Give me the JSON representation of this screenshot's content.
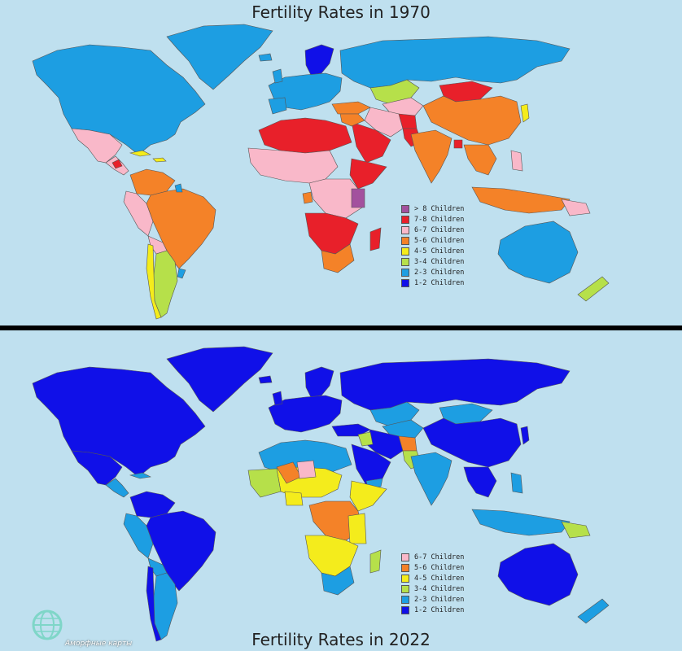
{
  "map_1970": {
    "title": "Fertility Rates in 1970",
    "legend": [
      {
        "label": "> 8 Children",
        "color": "#a3519e"
      },
      {
        "label": "7-8 Children",
        "color": "#e8202a"
      },
      {
        "label": "6-7 Children",
        "color": "#f9b8c9"
      },
      {
        "label": "5-6 Children",
        "color": "#f48228"
      },
      {
        "label": "4-5 Children",
        "color": "#f4ec1c"
      },
      {
        "label": "3-4 Children",
        "color": "#b6e04a"
      },
      {
        "label": "2-3 Children",
        "color": "#1d9ee2"
      },
      {
        "label": "1-2 Children",
        "color": "#1010e8"
      }
    ]
  },
  "map_2022": {
    "title": "Fertility Rates in 2022",
    "legend": [
      {
        "label": "6-7 Children",
        "color": "#f9b8c9"
      },
      {
        "label": "5-6 Children",
        "color": "#f48228"
      },
      {
        "label": "4-5 Children",
        "color": "#f4ec1c"
      },
      {
        "label": "3-4 Children",
        "color": "#b6e04a"
      },
      {
        "label": "2-3 Children",
        "color": "#1d9ee2"
      },
      {
        "label": "1-2 Children",
        "color": "#1010e8"
      }
    ]
  },
  "watermark": {
    "text": "Аморфные карты",
    "icon": "globe-icon"
  },
  "colors": {
    "ocean": "#bfe0ef",
    "border": "#444444"
  }
}
